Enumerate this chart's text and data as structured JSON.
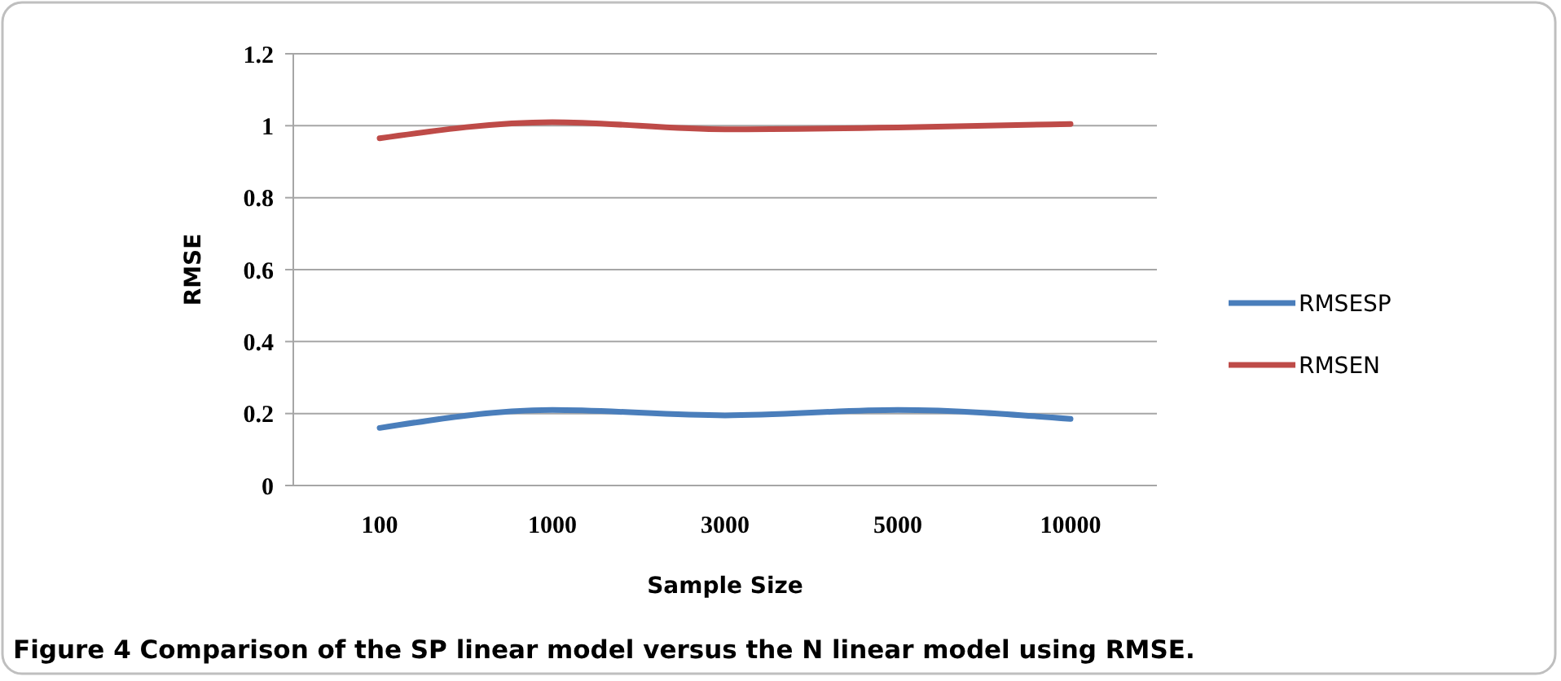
{
  "chart_data": {
    "type": "line",
    "xlabel": "Sample Size",
    "ylabel": "RMSE",
    "categories": [
      "100",
      "1000",
      "3000",
      "5000",
      "10000"
    ],
    "series": [
      {
        "name": "RMSESP",
        "color": "#4a7ebb",
        "values": [
          0.16,
          0.21,
          0.195,
          0.21,
          0.185
        ]
      },
      {
        "name": "RMSEN",
        "color": "#be4b48",
        "values": [
          0.965,
          1.01,
          0.99,
          0.995,
          1.005
        ]
      }
    ],
    "ylim": [
      0,
      1.2
    ],
    "yticks": [
      0,
      0.2,
      0.4,
      0.6,
      0.8,
      1,
      1.2
    ],
    "grid": "y",
    "legend": "right",
    "marker": "none",
    "line_style": "solid",
    "annotations": [
      "Figure 4 Comparison of the SP linear model versus the N linear model using RMSE."
    ]
  }
}
